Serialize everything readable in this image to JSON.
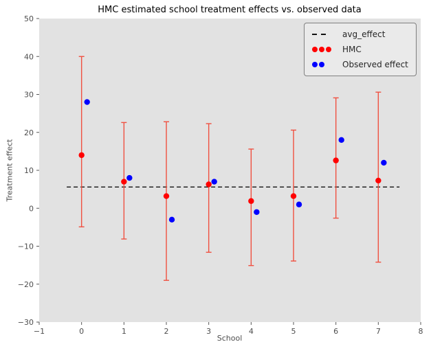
{
  "figure": {
    "background": "#ffffff"
  },
  "chart_data": {
    "type": "scatter",
    "title": "HMC estimated school treatment effects vs. observed data",
    "xlabel": "School",
    "ylabel": "Treatment effect",
    "xlim": [
      -1,
      8
    ],
    "ylim": [
      -30,
      50
    ],
    "xticks": [
      -1,
      0,
      1,
      2,
      3,
      4,
      5,
      6,
      7,
      8
    ],
    "yticks": [
      -30,
      -20,
      -10,
      0,
      10,
      20,
      30,
      40,
      50
    ],
    "grid": false,
    "axes_background": "#e2e2e2",
    "tick_color": "#555555",
    "tick_label_color": "#4d4d4d",
    "avg_effect": {
      "y": 5.6,
      "x_start": -0.35,
      "x_end": 7.5,
      "color": "#111111",
      "style": "dashed"
    },
    "schools": [
      0,
      1,
      2,
      3,
      4,
      5,
      6,
      7
    ],
    "series": [
      {
        "name": "HMC",
        "marker": "circle",
        "color": "#ff0000",
        "errorbar_color": "#f05040",
        "x": [
          0,
          1,
          2,
          3,
          4,
          5,
          6,
          7
        ],
        "y": [
          14.0,
          7.0,
          3.2,
          6.3,
          1.9,
          3.2,
          12.6,
          7.3
        ],
        "err_low": [
          -4.9,
          -8.1,
          -19.0,
          -11.6,
          -15.1,
          -13.9,
          -2.6,
          -14.2
        ],
        "err_high": [
          40.0,
          22.6,
          22.8,
          22.3,
          15.6,
          20.6,
          29.1,
          30.6
        ]
      },
      {
        "name": "Observed effect",
        "marker": "circle",
        "color": "#0000ff",
        "x_offset": 0.13,
        "x": [
          0,
          1,
          2,
          3,
          4,
          5,
          6,
          7
        ],
        "y": [
          28,
          8,
          -3,
          7,
          -1,
          1,
          18,
          12
        ]
      }
    ],
    "legend": {
      "position": "upper right",
      "items": [
        {
          "label": "avg_effect",
          "marker": "dashes",
          "color": "#111111",
          "count": 2
        },
        {
          "label": "HMC",
          "marker": "dots",
          "color": "#ff0000",
          "count": 3
        },
        {
          "label": "Observed effect",
          "marker": "dots",
          "color": "#0000ff",
          "count": 2
        }
      ]
    }
  }
}
